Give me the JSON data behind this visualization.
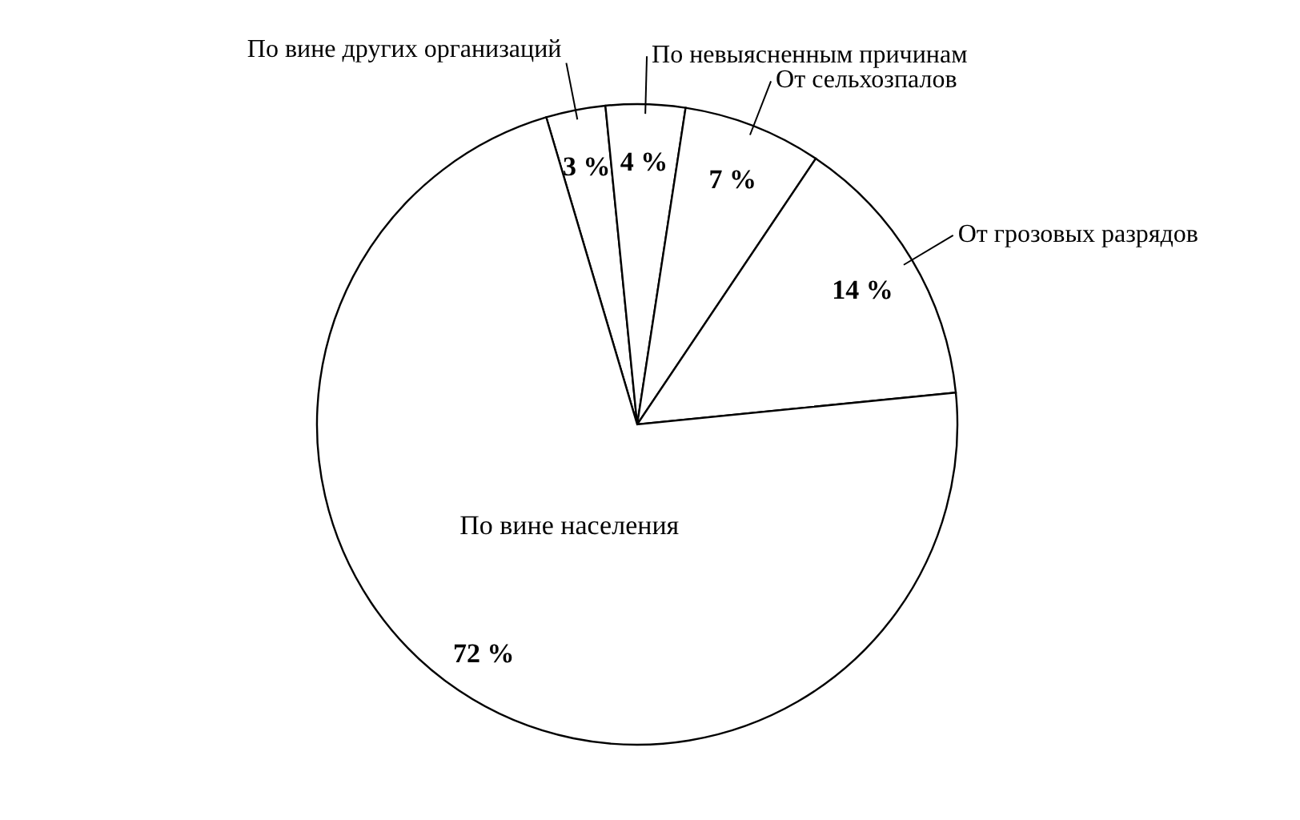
{
  "chart_data": {
    "type": "pie",
    "categories": [
      "По вине других организаций",
      "По невыясненным причинам",
      "От сельхозпалов",
      "От грозовых разрядов",
      "По вине населения"
    ],
    "values": [
      3,
      4,
      7,
      14,
      72
    ],
    "value_labels": [
      "3 %",
      "4 %",
      "7 %",
      "14 %",
      "72 %"
    ],
    "colors": [
      "#ffffff",
      "#ffffff",
      "#ffffff",
      "#ffffff",
      "#ffffff"
    ]
  }
}
